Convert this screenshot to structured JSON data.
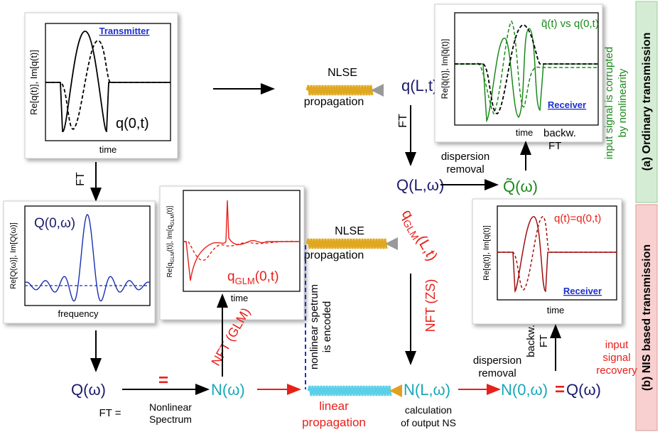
{
  "top": {
    "transmitter": {
      "label": "Transmitter",
      "ylabel": "Re[q(t)], Im[q(t)]",
      "signal": "q(0,t)",
      "xlabel": "time"
    },
    "nlse": {
      "line1": "NLSE",
      "line2": "propagation"
    },
    "q_L_t": "q(L,t)",
    "ft_down": "FT",
    "receiver": {
      "legend_a": "q̃(t)",
      "legend_b": " vs q(0,t)",
      "ylabel": "Re[q̃(t)], Im[q̃(t)]",
      "label": "Receiver",
      "xlabel": "time"
    },
    "backw_ft": {
      "line1": "backw.",
      "line2": "FT"
    },
    "corrupted": {
      "line1": "input signal is corrupted",
      "line2": "by nonlinearity"
    },
    "section": "(a) Ordinary transmission",
    "Q_L_w": "Q(L,ω)",
    "dispersion": {
      "line1": "dispersion",
      "line2": "removal"
    },
    "Q_tilde": "Q̃(ω)"
  },
  "bottom": {
    "ft_left": "FT",
    "spectrum_panel": {
      "ylabel": "Re[Q(ω)], Im[Q(ω)]",
      "signal": "Q(0,ω)",
      "xlabel": "frequency"
    },
    "glm_panel": {
      "ylabel_a": "Re[q",
      "ylabel_sub": "GLM",
      "ylabel_b": "(t)], Im[q",
      "ylabel_sub2": "GLM",
      "ylabel_c": "(t)]",
      "signal_a": "q",
      "signal_sub": "GLM",
      "signal_b": "(0,t)",
      "xlabel": "time"
    },
    "nlse": {
      "line1": "NLSE",
      "line2": "propagation"
    },
    "q_glm_L": {
      "a": "q",
      "sub": "GLM",
      "b": "(L,t)"
    },
    "nft_zs": "NFT (ZS)",
    "receiver": {
      "legend": "q(t)=q(0,t)",
      "ylabel": "Re[q(t)], Im[q(t)]",
      "label": "Receiver",
      "xlabel": "time"
    },
    "section": "(b) NIS based transmission",
    "Q_w": "Q(ω)",
    "eq1": "=",
    "N_w": "N(ω)",
    "ft_eq": "FT =",
    "ns": {
      "line1": "Nonlinear",
      "line2": "Spectrum"
    },
    "nft_glm": "NFT (GLM)",
    "encoded": {
      "line1": "nonlinear spetrum",
      "line2": "is encoded"
    },
    "linear": {
      "line1": "linear",
      "line2": "propagation"
    },
    "N_L_w": "N(L,ω)",
    "calc": {
      "line1": "calculation",
      "line2": "of output NS"
    },
    "dispersion": {
      "line1": "dispersion",
      "line2": "removal"
    },
    "N_0_w": "N(0,ω)",
    "eq2": "=",
    "Q_w_out": "Q(ω)",
    "backw_ft": {
      "line1": "backw.",
      "line2": "FT"
    },
    "recovery": {
      "line1": "input",
      "line2": "signal",
      "line3": "recovery"
    }
  }
}
